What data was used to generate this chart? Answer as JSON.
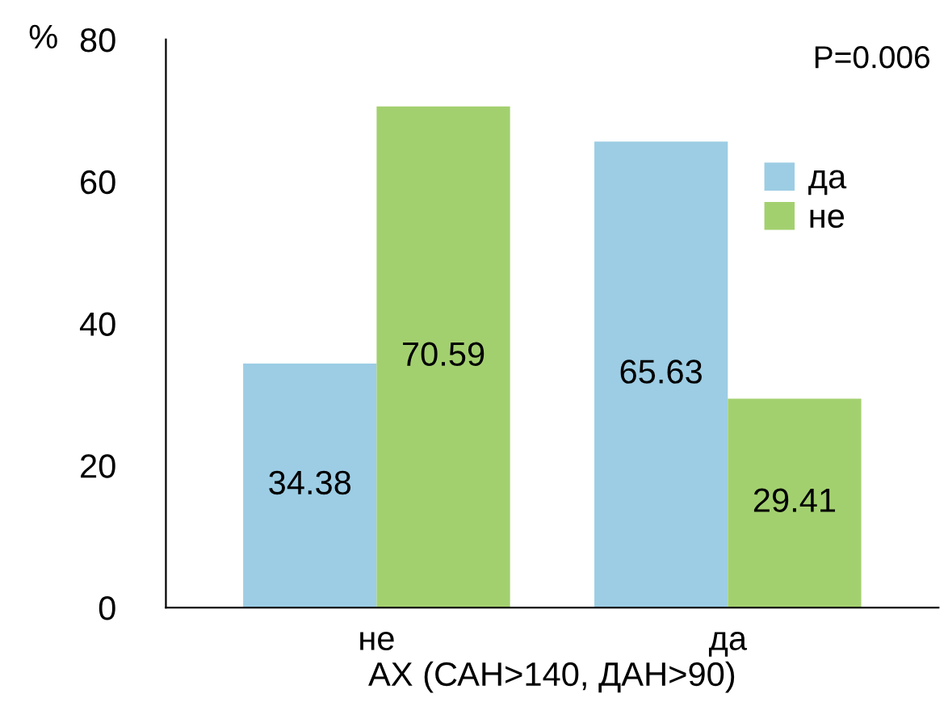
{
  "chart_data": {
    "type": "bar",
    "xlabel": "АХ (САН>140, ДАН>90)",
    "ylabel": "%",
    "categories": [
      "не",
      "да"
    ],
    "series": [
      {
        "name": "да",
        "color": "#9ccde4",
        "values": [
          34.38,
          65.63
        ]
      },
      {
        "name": "не",
        "color": "#a3d06f",
        "values": [
          70.59,
          29.41
        ]
      }
    ],
    "ylim": [
      0,
      80
    ],
    "yticks": [
      0,
      20,
      40,
      60,
      80
    ],
    "grid": false,
    "legend": "right",
    "data_labels": true,
    "annotations": [
      "P=0.006"
    ]
  }
}
